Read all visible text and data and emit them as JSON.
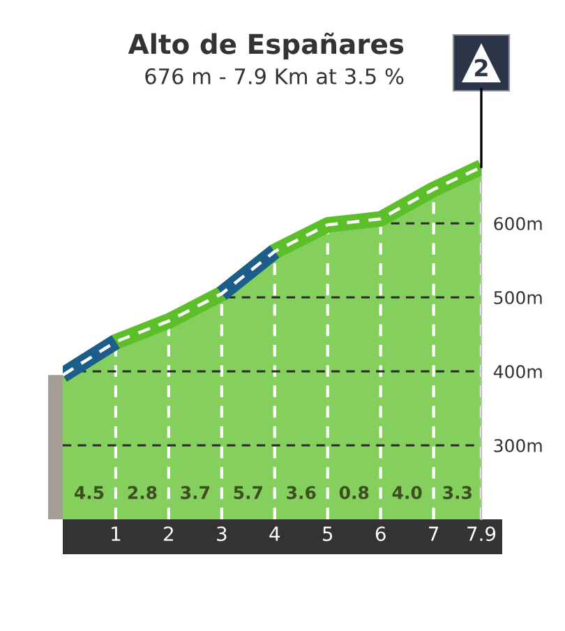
{
  "chart_data": {
    "type": "area",
    "title": "Alto de Españares",
    "subtitle": "676 m - 7.9 Km at 3.5 %",
    "x": [
      0,
      1,
      2,
      3,
      4,
      5,
      6,
      7,
      7.9
    ],
    "series": [
      {
        "color": "#5cbf2a",
        "line_style": "dashed",
        "values": [
          395,
          440,
          468,
          505,
          562,
          598,
          606,
          646,
          676
        ]
      },
      {
        "type": "line",
        "color": "#1c5d8a",
        "x": [
          0,
          1
        ],
        "values": [
          395,
          440
        ]
      },
      {
        "type": "line",
        "color": "#1c5d8a",
        "x": [
          3,
          4
        ],
        "values": [
          505,
          562
        ]
      }
    ],
    "xlim": [
      0,
      7.9
    ],
    "xticks": [
      1,
      2,
      3,
      4,
      5,
      6,
      7,
      7.9
    ],
    "ylim": [
      200,
      700
    ],
    "yticks": [
      {
        "value": 300,
        "label": "300m"
      },
      {
        "value": 400,
        "label": "400m"
      },
      {
        "value": 500,
        "label": "500m"
      },
      {
        "value": 600,
        "label": "600m"
      }
    ],
    "grid": true,
    "annotations": [
      "4.5",
      "2.8",
      "3.7",
      "5.7",
      "3.6",
      "0.8",
      "4.0",
      "3.3",
      {
        "text": "2",
        "x": 7.9,
        "y": 676
      }
    ]
  }
}
